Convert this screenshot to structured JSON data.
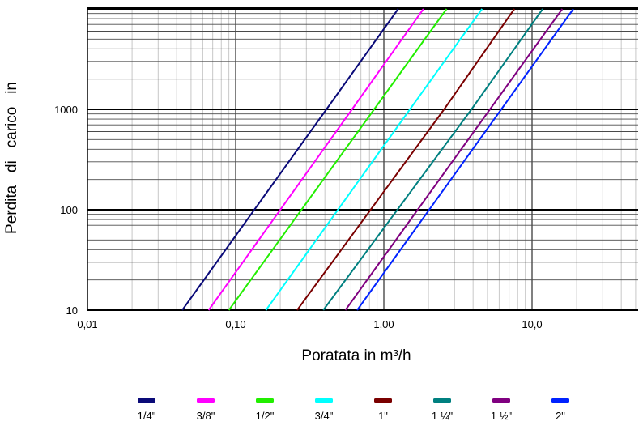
{
  "chart_data": {
    "type": "line",
    "title": "",
    "xlabel": "Poratata in m³/h",
    "ylabel": "Perdita   di   carico   in",
    "x_scale": "log",
    "y_scale": "log",
    "xlim": [
      0.01,
      50
    ],
    "ylim": [
      10,
      10000
    ],
    "grid": true,
    "legend_position": "bottom",
    "x_tick_labels": [
      {
        "value": 0.01,
        "label": "0,01"
      },
      {
        "value": 0.1,
        "label": "0,10"
      },
      {
        "value": 1,
        "label": "1,00"
      },
      {
        "value": 10,
        "label": "10,0"
      }
    ],
    "y_tick_labels": [
      {
        "value": 10,
        "label": "10"
      },
      {
        "value": 100,
        "label": "100"
      },
      {
        "value": 1000,
        "label": "1000"
      }
    ],
    "series": [
      {
        "name": "1/4\"",
        "color": "#0a0a78",
        "x": [
          0.0436,
          0.41,
          1.25
        ],
        "y": [
          10,
          1000,
          10000
        ]
      },
      {
        "name": "3/8\"",
        "color": "#ff00ff",
        "x": [
          0.0657,
          0.61,
          1.85
        ],
        "y": [
          10,
          1000,
          10000
        ]
      },
      {
        "name": "1/2\"",
        "color": "#22ee00",
        "x": [
          0.09,
          0.86,
          2.65
        ],
        "y": [
          10,
          1000,
          10000
        ]
      },
      {
        "name": "3/4\"",
        "color": "#00ffff",
        "x": [
          0.16,
          1.5,
          4.6
        ],
        "y": [
          10,
          1000,
          10000
        ]
      },
      {
        "name": "1\"",
        "color": "#7a0000",
        "x": [
          0.26,
          2.55,
          7.6
        ],
        "y": [
          10,
          1000,
          10000
        ]
      },
      {
        "name": "1 ¼\"",
        "color": "#008080",
        "x": [
          0.39,
          3.9,
          11.8
        ],
        "y": [
          10,
          1000,
          10000
        ]
      },
      {
        "name": "1 ½\"",
        "color": "#800080",
        "x": [
          0.55,
          5.2,
          16.0
        ],
        "y": [
          10,
          1000,
          10000
        ]
      },
      {
        "name": "2\"",
        "color": "#0022ff",
        "x": [
          0.66,
          6.2,
          19.0
        ],
        "y": [
          10,
          1000,
          10000
        ]
      }
    ]
  }
}
